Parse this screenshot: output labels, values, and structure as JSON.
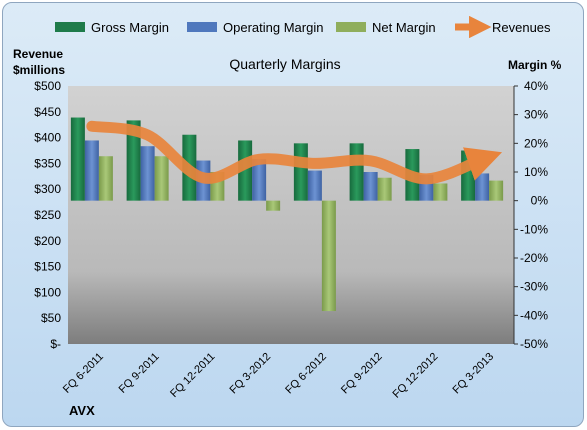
{
  "chart_data": {
    "type": "bar",
    "title": "Quarterly Margins",
    "left_axis_label_line1": "Revenue",
    "left_axis_label_line2": "$millions",
    "right_axis_label": "Margin %",
    "source_label": "AVX",
    "categories": [
      "FQ 6-2011",
      "FQ 9-2011",
      "FQ 12-2011",
      "FQ 3-2012",
      "FQ 6-2012",
      "FQ 9-2012",
      "FQ 12-2012",
      "FQ 3-2013"
    ],
    "left_ticks": [
      "$-",
      "$50",
      "$100",
      "$150",
      "$200",
      "$250",
      "$300",
      "$350",
      "$400",
      "$450",
      "$500"
    ],
    "right_ticks": [
      "-50%",
      "-40%",
      "-30%",
      "-20%",
      "-10%",
      "0%",
      "10%",
      "20%",
      "30%",
      "40%"
    ],
    "left_ylim": [
      0,
      500
    ],
    "right_ylim": [
      -50,
      40
    ],
    "series": [
      {
        "name": "Gross Margin",
        "axis": "right",
        "color": "#1e7b4a",
        "values": [
          29,
          28,
          23,
          21,
          20,
          20,
          18,
          17.5
        ]
      },
      {
        "name": "Operating Margin",
        "axis": "right",
        "color": "#4f78bd",
        "values": [
          21,
          19,
          14,
          14.5,
          10.5,
          10,
          9,
          9.5
        ]
      },
      {
        "name": "Net Margin",
        "axis": "right",
        "color": "#8fae5c",
        "values": [
          15.5,
          15.5,
          10,
          -3.5,
          -38.5,
          8,
          6,
          7
        ]
      },
      {
        "name": "Revenues",
        "axis": "left",
        "type": "line",
        "color": "#e8843c",
        "values": [
          422,
          405,
          322,
          358,
          350,
          355,
          320,
          358
        ]
      }
    ],
    "grid": false,
    "legend_position": "top"
  }
}
